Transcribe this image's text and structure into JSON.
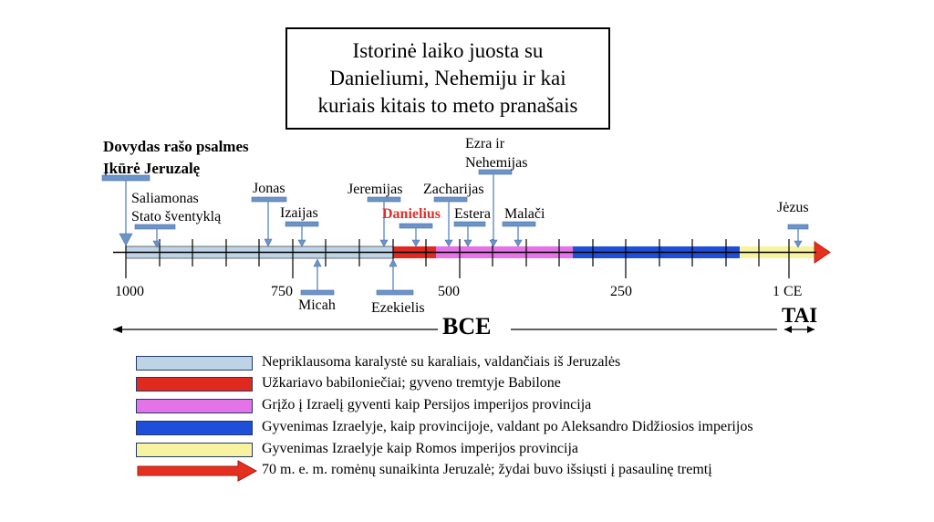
{
  "title": "Istorinė laiko juosta su\nDanieliumi, Nehemiju ir kai\nkuriais kitais to meto pranašais",
  "top_notes": [
    "Dovydas rašo psalmes",
    "Įkūrė Jeruzalę"
  ],
  "events": {
    "saliamonas": "Saliamonas\nStato šventyklą",
    "jonas": "Jonas",
    "izaijas": "Izaijas",
    "micah": "Micah",
    "jeremijas": "Jeremijas",
    "ezekielis": "Ezekielis",
    "danielius": "Danielius",
    "zacharijas": "Zacharijas",
    "estera": "Estera",
    "ezra": "Ezra ir\nNehemijas",
    "malaci": "Malači",
    "jezus": "Jėzus"
  },
  "axis": {
    "ticks": [
      "1000",
      "750",
      "500",
      "250",
      "1 CE"
    ],
    "era_left": "BCE",
    "era_right": "TAI"
  },
  "colors": {
    "independent": "#bfd3e6",
    "babylon": "#e02a1f",
    "persian": "#e373e6",
    "greek": "#1f4fd8",
    "roman": "#f7f3a0",
    "marker": "#6d94c8"
  },
  "legend": [
    {
      "color": "#bfd3e6",
      "text": "Nepriklausoma karalystė su karaliais, valdančiais iš Jeruzalės"
    },
    {
      "color": "#e02a1f",
      "text": "Užkariavo babiloniečiai; gyveno tremtyje Babilone"
    },
    {
      "color": "#e373e6",
      "text": "Grįžo į Izraelį gyventi kaip Persijos imperijos provincija"
    },
    {
      "color": "#1f4fd8",
      "text": "Gyvenimas Izraelyje, kaip provincijoje, valdant po Aleksandro Didžiosios imperijos"
    },
    {
      "color": "#f7f3a0",
      "text": "Gyvenimas Izraelyje kaip Romos imperijos provincija"
    },
    {
      "color": "#e02a1f",
      "text": "70 m. e. m. romėnų sunaikinta Jeruzalė; žydai buvo išsiųsti į pasaulinę tremtį"
    }
  ]
}
